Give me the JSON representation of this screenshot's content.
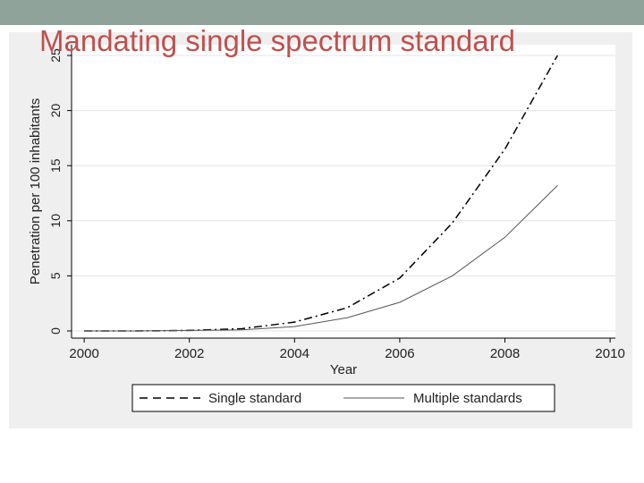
{
  "slide": {
    "title": "Mandating single spectrum standard",
    "colors": {
      "title": "#c0504d",
      "top_band": "#8fa39a",
      "panel": "#efefef",
      "plot": "#ffffff"
    }
  },
  "chart_data": {
    "type": "line",
    "title": "",
    "xlabel": "Year",
    "ylabel": "Penetration per 100 inhabitants",
    "xlim": [
      2000,
      2010
    ],
    "ylim": [
      0,
      25
    ],
    "x_ticks": [
      "2000",
      "2002",
      "2004",
      "2006",
      "2008",
      "2010"
    ],
    "y_ticks": [
      "0",
      "5",
      "10",
      "15",
      "20",
      "25"
    ],
    "grid": "horizontal",
    "legend": "bottom",
    "series": [
      {
        "name": "Single standard",
        "style": "dashed",
        "color": "#000000",
        "x": [
          2000,
          2001,
          2002,
          2003,
          2004,
          2005,
          2006,
          2007,
          2008,
          2009
        ],
        "y": [
          0,
          0,
          0.05,
          0.2,
          0.8,
          2.1,
          4.8,
          9.8,
          16.5,
          25
        ]
      },
      {
        "name": "Multiple standards",
        "style": "solid",
        "color": "#555555",
        "x": [
          2000,
          2001,
          2002,
          2003,
          2004,
          2005,
          2006,
          2007,
          2008,
          2009
        ],
        "y": [
          0,
          0,
          0.05,
          0.1,
          0.4,
          1.2,
          2.6,
          5.0,
          8.5,
          13.2
        ]
      }
    ]
  }
}
